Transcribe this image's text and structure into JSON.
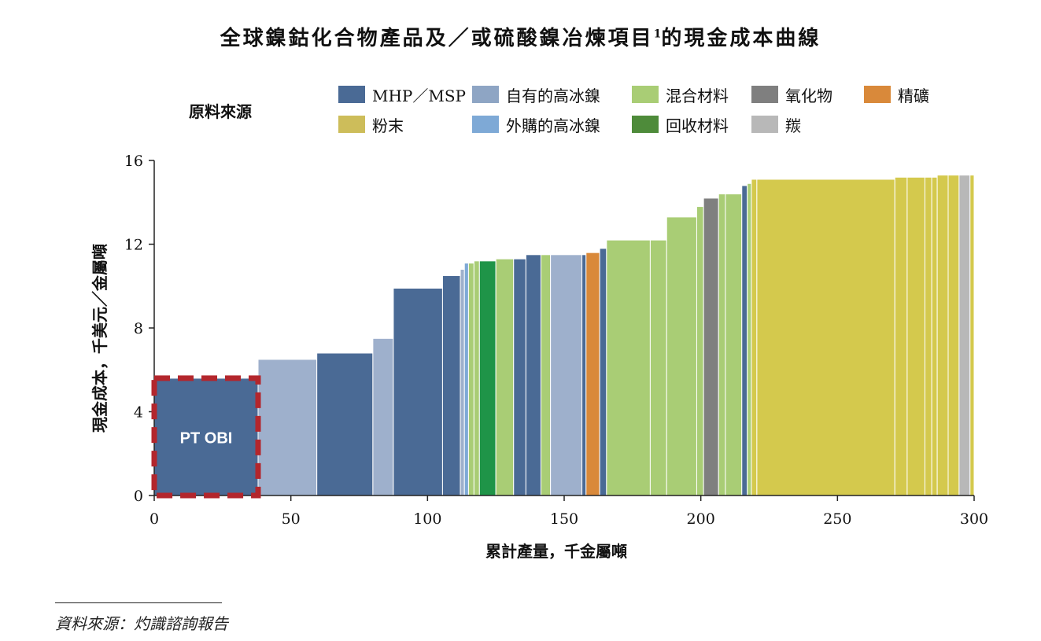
{
  "chart_data": {
    "type": "bar",
    "title": "全球鎳鈷化合物產品及／或硫酸鎳冶煉項目",
    "title_superscript": "1",
    "title_suffix": "的現金成本曲線",
    "xlabel": "累計產量，千金屬噸",
    "ylabel": "現金成本，千美元／金屬噸",
    "xlim": [
      0,
      300
    ],
    "ylim": [
      0,
      16
    ],
    "xticks": [
      "0",
      "50",
      "100",
      "150",
      "200",
      "250",
      "300"
    ],
    "xtick_values": [
      0,
      50,
      100,
      150,
      200,
      250,
      300
    ],
    "yticks": [
      "0",
      "4",
      "8",
      "12",
      "16"
    ],
    "ytick_values": [
      0,
      4,
      8,
      12,
      16
    ],
    "legend_title": "原料來源",
    "legend": [
      {
        "label": "MHP／MSP",
        "color": "#4a6a95"
      },
      {
        "label": "自有的高冰鎳",
        "color": "#8ea5c4"
      },
      {
        "label": "混合材料",
        "color": "#a9cd75"
      },
      {
        "label": "氧化物",
        "color": "#7f7f7f"
      },
      {
        "label": "精礦",
        "color": "#d9893a"
      },
      {
        "label": "粉末",
        "color": "#cdbd5a"
      },
      {
        "label": "外購的高冰鎳",
        "color": "#7ea9d6"
      },
      {
        "label": "回收材料",
        "color": "#4e8b3a"
      },
      {
        "label": "羰",
        "color": "#b8b8b8"
      }
    ],
    "highlight": {
      "label": "PT OBI",
      "x_start": 0,
      "x_end": 38,
      "value": 5.6
    },
    "bars": [
      {
        "x_start": 0,
        "x_end": 38,
        "value": 5.6,
        "color": "#4a6a95"
      },
      {
        "x_start": 38,
        "x_end": 59.5,
        "value": 6.5,
        "color": "#9eb0cc"
      },
      {
        "x_start": 59.5,
        "x_end": 80,
        "value": 6.8,
        "color": "#4a6a95"
      },
      {
        "x_start": 80,
        "x_end": 87.5,
        "value": 7.5,
        "color": "#9eb0cc"
      },
      {
        "x_start": 87.5,
        "x_end": 105.5,
        "value": 9.9,
        "color": "#4a6a95"
      },
      {
        "x_start": 105.5,
        "x_end": 112,
        "value": 10.5,
        "color": "#4a6a95"
      },
      {
        "x_start": 112,
        "x_end": 113.5,
        "value": 10.8,
        "color": "#9eb0cc"
      },
      {
        "x_start": 113.5,
        "x_end": 115,
        "value": 11.1,
        "color": "#7ea9d6"
      },
      {
        "x_start": 115,
        "x_end": 117,
        "value": 11.1,
        "color": "#a9cd75"
      },
      {
        "x_start": 117,
        "x_end": 119,
        "value": 11.2,
        "color": "#a9cd75"
      },
      {
        "x_start": 119,
        "x_end": 125,
        "value": 11.2,
        "color": "#1f9448"
      },
      {
        "x_start": 125,
        "x_end": 131.5,
        "value": 11.3,
        "color": "#a9cd75"
      },
      {
        "x_start": 131.5,
        "x_end": 136,
        "value": 11.3,
        "color": "#4a6a95"
      },
      {
        "x_start": 136,
        "x_end": 141.5,
        "value": 11.5,
        "color": "#4a6a95"
      },
      {
        "x_start": 141.5,
        "x_end": 145,
        "value": 11.5,
        "color": "#a9cd75"
      },
      {
        "x_start": 145,
        "x_end": 156.5,
        "value": 11.5,
        "color": "#9eb0cc"
      },
      {
        "x_start": 156.5,
        "x_end": 158,
        "value": 11.5,
        "color": "#4a6a95"
      },
      {
        "x_start": 158,
        "x_end": 163,
        "value": 11.6,
        "color": "#d9893a"
      },
      {
        "x_start": 163,
        "x_end": 165.5,
        "value": 11.8,
        "color": "#4a6a95"
      },
      {
        "x_start": 165.5,
        "x_end": 181.5,
        "value": 12.2,
        "color": "#a9cd75"
      },
      {
        "x_start": 181.5,
        "x_end": 187.5,
        "value": 12.2,
        "color": "#a9cd75"
      },
      {
        "x_start": 187.5,
        "x_end": 198.5,
        "value": 13.3,
        "color": "#a9cd75"
      },
      {
        "x_start": 198.5,
        "x_end": 201,
        "value": 13.8,
        "color": "#a9cd75"
      },
      {
        "x_start": 201,
        "x_end": 206.5,
        "value": 14.2,
        "color": "#7f7f7f"
      },
      {
        "x_start": 206.5,
        "x_end": 209,
        "value": 14.4,
        "color": "#a9cd75"
      },
      {
        "x_start": 209,
        "x_end": 215,
        "value": 14.4,
        "color": "#a9cd75"
      },
      {
        "x_start": 215,
        "x_end": 217,
        "value": 14.8,
        "color": "#4a6a95"
      },
      {
        "x_start": 217,
        "x_end": 218.5,
        "value": 14.9,
        "color": "#a9cd75"
      },
      {
        "x_start": 218.5,
        "x_end": 220.5,
        "value": 15.1,
        "color": "#d4c94d"
      },
      {
        "x_start": 220.5,
        "x_end": 271,
        "value": 15.1,
        "color": "#d4c94d"
      },
      {
        "x_start": 271,
        "x_end": 275.5,
        "value": 15.2,
        "color": "#d4c94d"
      },
      {
        "x_start": 275.5,
        "x_end": 282,
        "value": 15.2,
        "color": "#d4c94d"
      },
      {
        "x_start": 282,
        "x_end": 284.5,
        "value": 15.2,
        "color": "#d4c94d"
      },
      {
        "x_start": 284.5,
        "x_end": 286.5,
        "value": 15.2,
        "color": "#d4c94d"
      },
      {
        "x_start": 286.5,
        "x_end": 290.5,
        "value": 15.3,
        "color": "#d4c94d"
      },
      {
        "x_start": 290.5,
        "x_end": 294.5,
        "value": 15.3,
        "color": "#d4c94d"
      },
      {
        "x_start": 294.5,
        "x_end": 298.5,
        "value": 15.3,
        "color": "#b8b8b8"
      },
      {
        "x_start": 298.5,
        "x_end": 300,
        "value": 15.3,
        "color": "#d4c94d"
      }
    ]
  },
  "source_note": "資料來源：灼識諮詢報告"
}
